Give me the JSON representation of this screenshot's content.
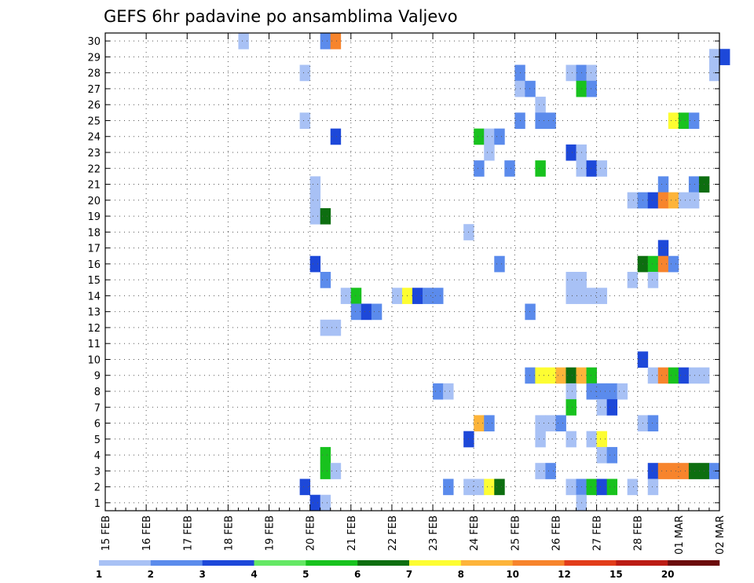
{
  "chart_data": {
    "type": "heatmap",
    "title": "GEFS 6hr padavine po ansamblima Valjevo",
    "x_ticks": [
      "15 FEB",
      "16 FEB",
      "17 FEB",
      "18 FEB",
      "19 FEB",
      "20 FEB",
      "21 FEB",
      "22 FEB",
      "23 FEB",
      "24 FEB",
      "25 FEB",
      "26 FEB",
      "27 FEB",
      "28 FEB",
      "01 MAR",
      "02 MAR"
    ],
    "y_ticks": [
      1,
      2,
      3,
      4,
      5,
      6,
      7,
      8,
      9,
      10,
      11,
      12,
      13,
      14,
      15,
      16,
      17,
      18,
      19,
      20,
      21,
      22,
      23,
      24,
      25,
      26,
      27,
      28,
      29,
      30
    ],
    "x_range_steps": [
      0,
      60
    ],
    "y_range": [
      0.5,
      30.5
    ],
    "grid": true,
    "legend_position": "bottom",
    "legend": {
      "labels": [
        "1",
        "2",
        "3",
        "4",
        "5",
        "6",
        "7",
        "8",
        "10",
        "12",
        "15",
        "20"
      ],
      "colors": [
        "#a8c1f5",
        "#5b8bec",
        "#1d48d9",
        "#65e865",
        "#18c21e",
        "#0d6e10",
        "#fdfd32",
        "#fdb43a",
        "#f7842c",
        "#e23c1a",
        "#bb1c14",
        "#6b0c0c"
      ]
    },
    "cells": [
      [
        30,
        13.5,
        1
      ],
      [
        30,
        21.5,
        2
      ],
      [
        30,
        22.5,
        9
      ],
      [
        29,
        59.5,
        1
      ],
      [
        29,
        60.5,
        3
      ],
      [
        28,
        19.5,
        1
      ],
      [
        28,
        40.5,
        2
      ],
      [
        28,
        45.5,
        1
      ],
      [
        28,
        46.5,
        2
      ],
      [
        28,
        47.5,
        1
      ],
      [
        28,
        59.5,
        1
      ],
      [
        27,
        40.5,
        1
      ],
      [
        27,
        41.5,
        2
      ],
      [
        27,
        46.5,
        5
      ],
      [
        27,
        47.5,
        2
      ],
      [
        26,
        42.5,
        1
      ],
      [
        25,
        19.5,
        1
      ],
      [
        25,
        40.5,
        2
      ],
      [
        25,
        42.5,
        2
      ],
      [
        25,
        43.5,
        2
      ],
      [
        25,
        55.5,
        7
      ],
      [
        25,
        56.5,
        5
      ],
      [
        25,
        57.5,
        2
      ],
      [
        24,
        22.5,
        3
      ],
      [
        24,
        36.5,
        5
      ],
      [
        24,
        37.5,
        1
      ],
      [
        24,
        38.5,
        2
      ],
      [
        23,
        37.5,
        1
      ],
      [
        23,
        45.5,
        3
      ],
      [
        23,
        46.5,
        1
      ],
      [
        22,
        36.5,
        2
      ],
      [
        22,
        39.5,
        2
      ],
      [
        22,
        42.5,
        5
      ],
      [
        22,
        46.5,
        1
      ],
      [
        22,
        47.5,
        3
      ],
      [
        22,
        48.5,
        1
      ],
      [
        21,
        20.5,
        1
      ],
      [
        21,
        54.5,
        2
      ],
      [
        21,
        57.5,
        2
      ],
      [
        21,
        58.5,
        6
      ],
      [
        20,
        20.5,
        1
      ],
      [
        20,
        51.5,
        1
      ],
      [
        20,
        52.5,
        2
      ],
      [
        20,
        53.5,
        3
      ],
      [
        20,
        54.5,
        9
      ],
      [
        20,
        55.5,
        8
      ],
      [
        20,
        56.5,
        1
      ],
      [
        20,
        57.5,
        1
      ],
      [
        19,
        20.5,
        1
      ],
      [
        19,
        21.5,
        6
      ],
      [
        18,
        35.5,
        1
      ],
      [
        17,
        54.5,
        3
      ],
      [
        16,
        20.5,
        3
      ],
      [
        16,
        38.5,
        2
      ],
      [
        16,
        52.5,
        6
      ],
      [
        16,
        53.5,
        5
      ],
      [
        16,
        54.5,
        9
      ],
      [
        16,
        55.5,
        2
      ],
      [
        15,
        21.5,
        2
      ],
      [
        15,
        45.5,
        1
      ],
      [
        15,
        46.5,
        1
      ],
      [
        15,
        51.5,
        1
      ],
      [
        15,
        53.5,
        1
      ],
      [
        14,
        23.5,
        1
      ],
      [
        14,
        24.5,
        5
      ],
      [
        14,
        28.5,
        1
      ],
      [
        14,
        29.5,
        7
      ],
      [
        14,
        30.5,
        3
      ],
      [
        14,
        31.5,
        2
      ],
      [
        14,
        32.5,
        2
      ],
      [
        14,
        45.5,
        1
      ],
      [
        14,
        46.5,
        1
      ],
      [
        14,
        47.5,
        1
      ],
      [
        14,
        48.5,
        1
      ],
      [
        13,
        24.5,
        2
      ],
      [
        13,
        25.5,
        3
      ],
      [
        13,
        26.5,
        2
      ],
      [
        13,
        41.5,
        2
      ],
      [
        12,
        21.5,
        1
      ],
      [
        12,
        22.5,
        1
      ],
      [
        10,
        52.5,
        3
      ],
      [
        9,
        41.5,
        2
      ],
      [
        9,
        42.5,
        7
      ],
      [
        9,
        43.5,
        7
      ],
      [
        9,
        44.5,
        8
      ],
      [
        9,
        45.5,
        6
      ],
      [
        9,
        46.5,
        8
      ],
      [
        9,
        47.5,
        5
      ],
      [
        9,
        53.5,
        1
      ],
      [
        9,
        54.5,
        9
      ],
      [
        9,
        55.5,
        5
      ],
      [
        9,
        56.5,
        3
      ],
      [
        9,
        57.5,
        1
      ],
      [
        9,
        58.5,
        1
      ],
      [
        8,
        32.5,
        2
      ],
      [
        8,
        33.5,
        1
      ],
      [
        8,
        45.5,
        1
      ],
      [
        8,
        47.5,
        2
      ],
      [
        8,
        48.5,
        2
      ],
      [
        8,
        49.5,
        2
      ],
      [
        8,
        50.5,
        1
      ],
      [
        7,
        45.5,
        5
      ],
      [
        7,
        48.5,
        1
      ],
      [
        7,
        49.5,
        3
      ],
      [
        6,
        36.5,
        8
      ],
      [
        6,
        37.5,
        2
      ],
      [
        6,
        42.5,
        1
      ],
      [
        6,
        43.5,
        1
      ],
      [
        6,
        44.5,
        2
      ],
      [
        6,
        52.5,
        1
      ],
      [
        6,
        53.5,
        2
      ],
      [
        5,
        35.5,
        3
      ],
      [
        5,
        42.5,
        1
      ],
      [
        5,
        45.5,
        1
      ],
      [
        5,
        47.5,
        1
      ],
      [
        5,
        48.5,
        7
      ],
      [
        4,
        21.5,
        5
      ],
      [
        4,
        48.5,
        1
      ],
      [
        4,
        49.5,
        2
      ],
      [
        3,
        21.5,
        5
      ],
      [
        3,
        22.5,
        1
      ],
      [
        3,
        42.5,
        1
      ],
      [
        3,
        43.5,
        2
      ],
      [
        3,
        53.5,
        3
      ],
      [
        3,
        54.5,
        9
      ],
      [
        3,
        55.5,
        9
      ],
      [
        3,
        56.5,
        9
      ],
      [
        3,
        57.5,
        6
      ],
      [
        3,
        58.5,
        6
      ],
      [
        3,
        59.5,
        2
      ],
      [
        2,
        19.5,
        3
      ],
      [
        2,
        33.5,
        2
      ],
      [
        2,
        35.5,
        1
      ],
      [
        2,
        36.5,
        1
      ],
      [
        2,
        37.5,
        7
      ],
      [
        2,
        38.5,
        6
      ],
      [
        2,
        45.5,
        1
      ],
      [
        2,
        46.5,
        2
      ],
      [
        2,
        47.5,
        5
      ],
      [
        2,
        48.5,
        3
      ],
      [
        2,
        49.5,
        5
      ],
      [
        2,
        51.5,
        1
      ],
      [
        2,
        53.5,
        1
      ],
      [
        1,
        20.5,
        3
      ],
      [
        1,
        21.5,
        1
      ],
      [
        1,
        46.5,
        1
      ]
    ],
    "cell_units": "x in 6-hour steps from 15 FEB 00Z; y = ensemble member; value = legend color class index"
  }
}
